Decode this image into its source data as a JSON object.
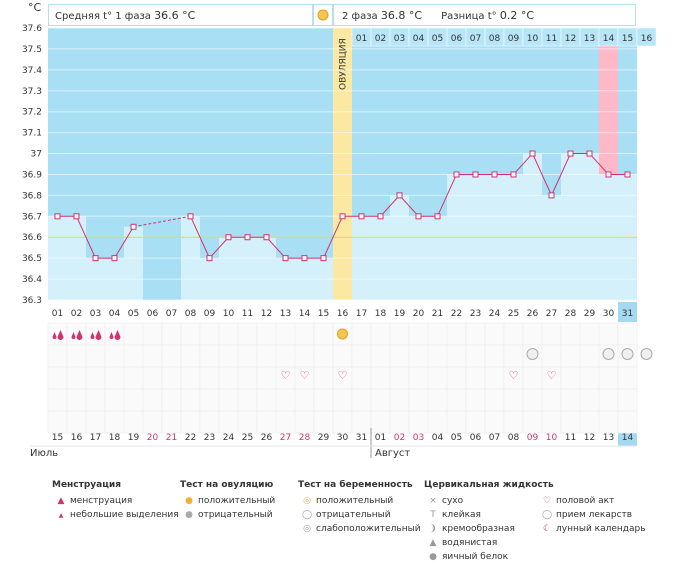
{
  "chart_data": {
    "type": "line",
    "title": "",
    "ylabel": "°C",
    "ylim": [
      36.3,
      37.6
    ],
    "yticks": [
      "37.6",
      "37.5",
      "37.4",
      "37.3",
      "37.2",
      "37.1",
      "37",
      "36.9",
      "36.8",
      "36.7",
      "36.6",
      "36.5",
      "36.4",
      "36.3"
    ],
    "phase1": {
      "label": "Средняя t° 1 фаза",
      "value": "36.6 °C"
    },
    "phase2": {
      "label": "2 фаза",
      "value": "36.8 °C"
    },
    "difference": {
      "label": "Разница t°",
      "value": "0.2 °C"
    },
    "ovulation_label": "ОВУЛЯЦИЯ",
    "cycle_days": [
      "01",
      "02",
      "03",
      "04",
      "05",
      "06",
      "07",
      "08",
      "09",
      "10",
      "11",
      "12",
      "13",
      "14",
      "15",
      "16",
      "17",
      "18",
      "19",
      "20",
      "21",
      "22",
      "23",
      "24",
      "25",
      "26",
      "27",
      "28",
      "29",
      "30",
      "31"
    ],
    "phase2_days": [
      "01",
      "02",
      "03",
      "04",
      "05",
      "06",
      "07",
      "08",
      "09",
      "10",
      "11",
      "12",
      "13",
      "14",
      "15",
      "16"
    ],
    "temperature": [
      36.7,
      36.7,
      36.5,
      36.5,
      36.65,
      null,
      null,
      36.7,
      36.5,
      36.6,
      36.6,
      36.6,
      36.5,
      36.5,
      36.5,
      36.7,
      36.7,
      36.7,
      36.8,
      36.7,
      36.7,
      36.9,
      36.9,
      36.9,
      36.9,
      37.0,
      36.8,
      37.0,
      37.0,
      36.9,
      36.9
    ],
    "coverline": 36.6,
    "dates": [
      "15",
      "16",
      "17",
      "18",
      "19",
      "20",
      "21",
      "22",
      "23",
      "24",
      "25",
      "26",
      "27",
      "28",
      "29",
      "30",
      "31",
      "01",
      "02",
      "03",
      "04",
      "05",
      "06",
      "07",
      "08",
      "09",
      "10",
      "11",
      "12",
      "13",
      "14"
    ],
    "weekend_date_indices": [
      5,
      6,
      12,
      13,
      18,
      19,
      25,
      26
    ],
    "month1": "Июль",
    "month2": "Август",
    "menstruation_days": [
      0,
      1,
      2,
      3
    ],
    "ovulation_test_positive_days": [
      15
    ],
    "pregnancy_test_negative_days": [
      25,
      29,
      30,
      31
    ],
    "intercourse_days": [
      12,
      13,
      15,
      24,
      26
    ]
  },
  "legend": {
    "menstruation": {
      "title": "Менструация",
      "items": [
        "менструация",
        "небольшие выделения"
      ]
    },
    "ovulation_test": {
      "title": "Тест на овуляцию",
      "items": [
        "положительный",
        "отрицательный"
      ]
    },
    "pregnancy_test": {
      "title": "Тест на беременность",
      "items": [
        "положительный",
        "отрицательный",
        "слабоположительный"
      ]
    },
    "cervical": {
      "title": "Цервикальная жидкость",
      "items": [
        "сухо",
        "клейкая",
        "кремообразная",
        "водянистая",
        "яичный белок"
      ]
    },
    "other": {
      "items": [
        "половой акт",
        "прием лекарств",
        "лунный календарь"
      ]
    }
  },
  "colors": {
    "phase_bg": "#a9dff5",
    "bar": "#d4f0fb",
    "line": "#d0336e",
    "ovulation": "#fbe9a3",
    "highlight": "#ffb8c8",
    "today": "#a5d9f2",
    "weekend": "#d0336e"
  }
}
